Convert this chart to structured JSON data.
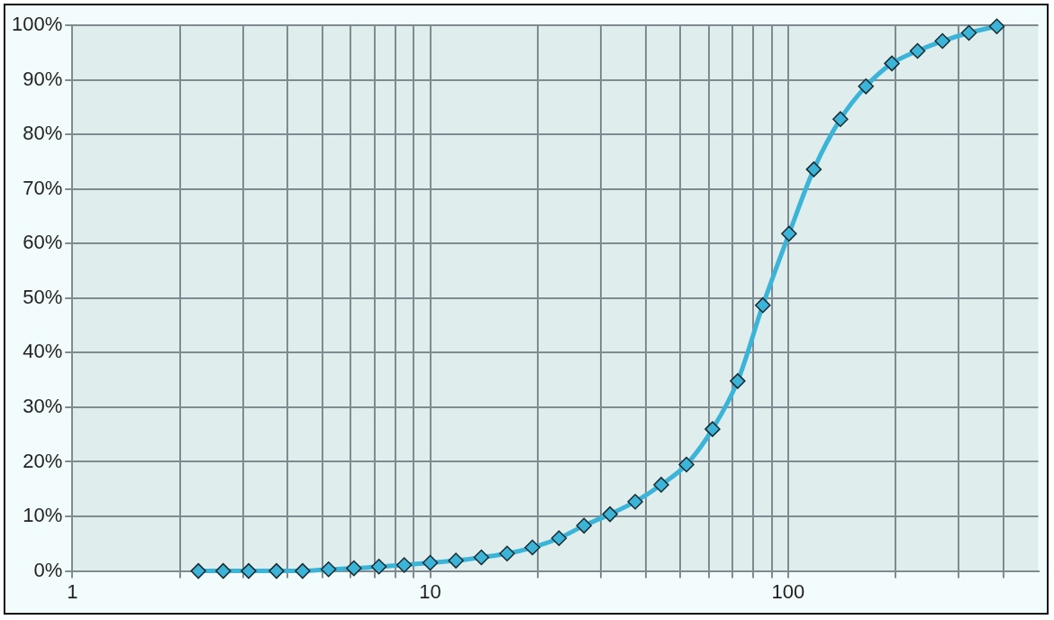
{
  "chart_data": {
    "type": "line",
    "x": [
      2.25,
      2.64,
      3.11,
      3.72,
      4.4,
      5.2,
      6.12,
      7.19,
      8.46,
      10,
      11.8,
      13.9,
      16.4,
      19.3,
      22.9,
      26.9,
      31.8,
      37.4,
      44.2,
      52,
      61.5,
      72.3,
      85,
      100.6,
      118,
      140,
      165,
      195,
      230,
      270,
      320,
      383
    ],
    "series": [
      {
        "color": "#3bb4d8",
        "values": [
          0,
          0,
          0,
          0,
          0,
          0.3,
          0.5,
          0.8,
          1.1,
          1.5,
          1.9,
          2.5,
          3.2,
          4.3,
          6,
          8.3,
          10.4,
          12.7,
          15.8,
          19.5,
          26,
          34.8,
          48.7,
          61.8,
          73.6,
          82.8,
          88.8,
          93,
          95.3,
          97.1,
          98.6,
          99.8
        ]
      }
    ],
    "log": "x",
    "xlim": [
      1,
      500
    ],
    "xticks": [
      1,
      {
        "value": 2,
        "label": null
      },
      {
        "value": 3,
        "label": null
      },
      {
        "value": 4,
        "label": null
      },
      {
        "value": 5,
        "label": null
      },
      {
        "value": 6,
        "label": null
      },
      {
        "value": 7,
        "label": null
      },
      {
        "value": 8,
        "label": null
      },
      {
        "value": 9,
        "label": null
      },
      10,
      {
        "value": 20,
        "label": null
      },
      {
        "value": 30,
        "label": null
      },
      {
        "value": 40,
        "label": null
      },
      {
        "value": 50,
        "label": null
      },
      {
        "value": 60,
        "label": null
      },
      {
        "value": 70,
        "label": null
      },
      {
        "value": 80,
        "label": null
      },
      {
        "value": 90,
        "label": null
      },
      100,
      {
        "value": 200,
        "label": null
      },
      {
        "value": 300,
        "label": null
      },
      {
        "value": 400,
        "label": null
      }
    ],
    "ylim": [
      0,
      100
    ],
    "yticks": [
      {
        "value": 0,
        "label": "0%"
      },
      {
        "value": 10,
        "label": "10%"
      },
      {
        "value": 20,
        "label": "20%"
      },
      {
        "value": 30,
        "label": "30%"
      },
      {
        "value": 40,
        "label": "40%"
      },
      {
        "value": 50,
        "label": "50%"
      },
      {
        "value": 60,
        "label": "60%"
      },
      {
        "value": 70,
        "label": "70%"
      },
      {
        "value": 80,
        "label": "80%"
      },
      {
        "value": 90,
        "label": "90%"
      },
      {
        "value": 100,
        "label": "100%"
      }
    ],
    "grid": true,
    "legend": false,
    "marker": "diamond",
    "line_style": "solid"
  }
}
